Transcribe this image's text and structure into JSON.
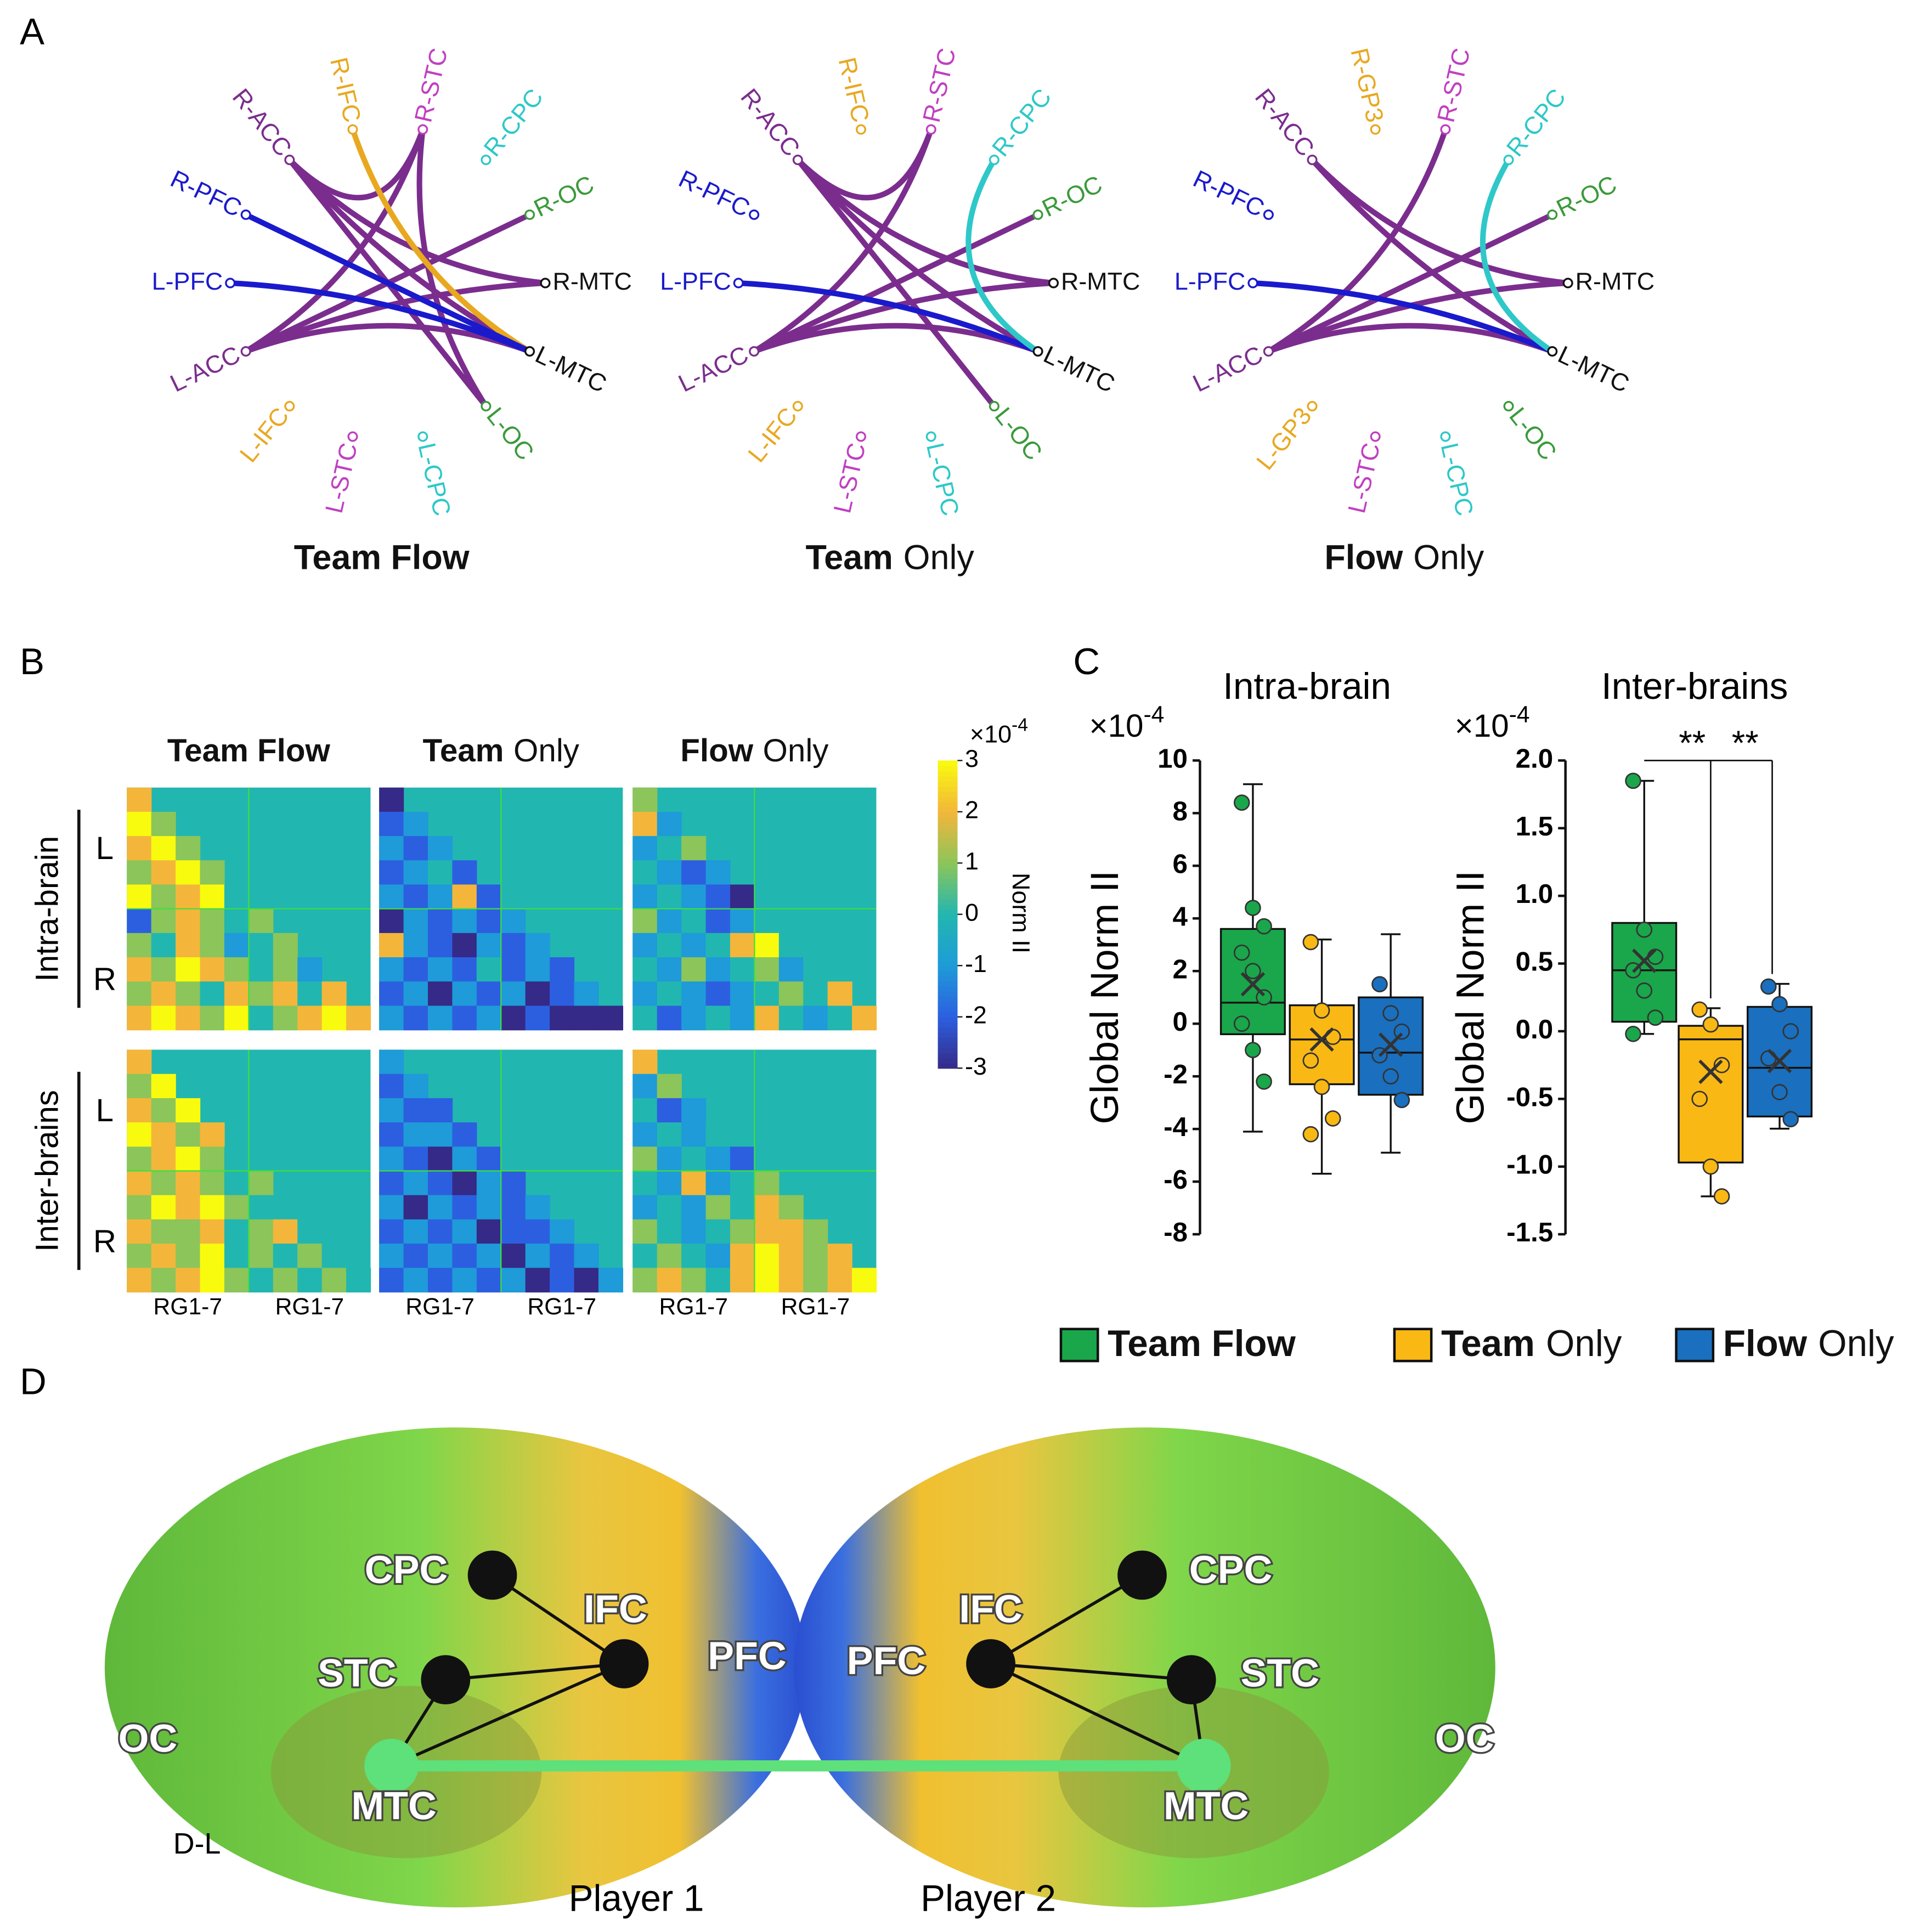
{
  "panel_labels": [
    "A",
    "B",
    "C",
    "D"
  ],
  "circle_graphs": [
    {
      "title": {
        "parts": [
          {
            "text": "Team Flow",
            "bold": true
          }
        ]
      },
      "nodes": [
        {
          "label": "R-MTC",
          "color": "#111111"
        },
        {
          "label": "L-MTC",
          "color": "#111111"
        },
        {
          "label": "L-OC",
          "color": "#3a9a3a"
        },
        {
          "label": "L-CPC",
          "color": "#2ec8c8"
        },
        {
          "label": "L-STC",
          "color": "#c040c0"
        },
        {
          "label": "L-IFC",
          "color": "#e8a820"
        },
        {
          "label": "L-ACC",
          "color": "#7b2d8e"
        },
        {
          "label": "L-PFC",
          "color": "#1a1acc"
        },
        {
          "label": "R-PFC",
          "color": "#1a1acc"
        },
        {
          "label": "R-ACC",
          "color": "#7b2d8e"
        },
        {
          "label": "R-IFC",
          "color": "#e8a820"
        },
        {
          "label": "R-STC",
          "color": "#c040c0"
        },
        {
          "label": "R-CPC",
          "color": "#2ec8c8"
        },
        {
          "label": "R-OC",
          "color": "#3a9a3a"
        }
      ],
      "edges": [
        {
          "from": "R-ACC",
          "to": "R-MTC",
          "color": "#7b2d8e"
        },
        {
          "from": "R-ACC",
          "to": "L-MTC",
          "color": "#7b2d8e"
        },
        {
          "from": "R-ACC",
          "to": "R-STC",
          "color": "#7b2d8e"
        },
        {
          "from": "R-STC",
          "to": "L-ACC",
          "color": "#7b2d8e"
        },
        {
          "from": "R-STC",
          "to": "L-OC",
          "color": "#7b2d8e"
        },
        {
          "from": "L-ACC",
          "to": "R-OC",
          "color": "#7b2d8e"
        },
        {
          "from": "L-ACC",
          "to": "R-MTC",
          "color": "#7b2d8e"
        },
        {
          "from": "L-ACC",
          "to": "L-MTC",
          "color": "#7b2d8e"
        },
        {
          "from": "R-ACC",
          "to": "L-OC",
          "color": "#7b2d8e"
        },
        {
          "from": "R-IFC",
          "to": "L-MTC",
          "color": "#e8a820"
        },
        {
          "from": "R-PFC",
          "to": "L-MTC",
          "color": "#1a1acc"
        },
        {
          "from": "L-PFC",
          "to": "L-MTC",
          "color": "#1a1acc"
        }
      ]
    },
    {
      "title": {
        "parts": [
          {
            "text": "Team",
            "bold": true
          },
          {
            "text": "Only",
            "bold": false
          }
        ]
      },
      "nodes": [
        {
          "label": "R-MTC",
          "color": "#111111"
        },
        {
          "label": "L-MTC",
          "color": "#111111"
        },
        {
          "label": "L-OC",
          "color": "#3a9a3a"
        },
        {
          "label": "L-CPC",
          "color": "#2ec8c8"
        },
        {
          "label": "L-STC",
          "color": "#c040c0"
        },
        {
          "label": "L-IFC",
          "color": "#e8a820"
        },
        {
          "label": "L-ACC",
          "color": "#7b2d8e"
        },
        {
          "label": "L-PFC",
          "color": "#1a1acc"
        },
        {
          "label": "R-PFC",
          "color": "#1a1acc"
        },
        {
          "label": "R-ACC",
          "color": "#7b2d8e"
        },
        {
          "label": "R-IFC",
          "color": "#e8a820"
        },
        {
          "label": "R-STC",
          "color": "#c040c0"
        },
        {
          "label": "R-CPC",
          "color": "#2ec8c8"
        },
        {
          "label": "R-OC",
          "color": "#3a9a3a"
        }
      ],
      "edges": [
        {
          "from": "R-ACC",
          "to": "R-STC",
          "color": "#7b2d8e"
        },
        {
          "from": "R-ACC",
          "to": "R-MTC",
          "color": "#7b2d8e"
        },
        {
          "from": "R-ACC",
          "to": "L-MTC",
          "color": "#7b2d8e"
        },
        {
          "from": "R-ACC",
          "to": "L-OC",
          "color": "#7b2d8e"
        },
        {
          "from": "L-ACC",
          "to": "R-OC",
          "color": "#7b2d8e"
        },
        {
          "from": "L-ACC",
          "to": "R-MTC",
          "color": "#7b2d8e"
        },
        {
          "from": "L-ACC",
          "to": "R-STC",
          "color": "#7b2d8e"
        },
        {
          "from": "L-ACC",
          "to": "L-MTC",
          "color": "#7b2d8e"
        },
        {
          "from": "L-PFC",
          "to": "L-MTC",
          "color": "#1a1acc"
        },
        {
          "from": "R-CPC",
          "to": "L-MTC",
          "color": "#2ec8c8"
        }
      ]
    },
    {
      "title": {
        "parts": [
          {
            "text": "Flow",
            "bold": true
          },
          {
            "text": "Only",
            "bold": false
          }
        ]
      },
      "nodes": [
        {
          "label": "R-MTC",
          "color": "#111111"
        },
        {
          "label": "L-MTC",
          "color": "#111111"
        },
        {
          "label": "L-OC",
          "color": "#3a9a3a"
        },
        {
          "label": "L-CPC",
          "color": "#2ec8c8"
        },
        {
          "label": "L-STC",
          "color": "#c040c0"
        },
        {
          "label": "L-GP3",
          "color": "#e8a820"
        },
        {
          "label": "L-ACC",
          "color": "#7b2d8e"
        },
        {
          "label": "L-PFC",
          "color": "#1a1acc"
        },
        {
          "label": "R-PFC",
          "color": "#1a1acc"
        },
        {
          "label": "R-ACC",
          "color": "#7b2d8e"
        },
        {
          "label": "R-GP3",
          "color": "#e8a820"
        },
        {
          "label": "R-STC",
          "color": "#c040c0"
        },
        {
          "label": "R-CPC",
          "color": "#2ec8c8"
        },
        {
          "label": "R-OC",
          "color": "#3a9a3a"
        }
      ],
      "edges": [
        {
          "from": "R-ACC",
          "to": "R-MTC",
          "color": "#7b2d8e"
        },
        {
          "from": "R-ACC",
          "to": "L-MTC",
          "color": "#7b2d8e"
        },
        {
          "from": "R-STC",
          "to": "L-ACC",
          "color": "#7b2d8e"
        },
        {
          "from": "L-ACC",
          "to": "R-OC",
          "color": "#7b2d8e"
        },
        {
          "from": "L-ACC",
          "to": "R-MTC",
          "color": "#7b2d8e"
        },
        {
          "from": "L-ACC",
          "to": "L-MTC",
          "color": "#7b2d8e"
        },
        {
          "from": "L-PFC",
          "to": "L-MTC",
          "color": "#1a1acc"
        },
        {
          "from": "R-CPC",
          "to": "L-MTC",
          "color": "#2ec8c8"
        }
      ]
    }
  ],
  "heatmaps": {
    "titles": [
      {
        "parts": [
          {
            "text": "Team Flow",
            "bold": true
          }
        ]
      },
      {
        "parts": [
          {
            "text": "Team",
            "bold": true
          },
          {
            "text": "Only",
            "bold": false
          }
        ]
      },
      {
        "parts": [
          {
            "text": "Flow",
            "bold": true
          },
          {
            "text": "Only",
            "bold": false
          }
        ]
      }
    ],
    "row_labels": [
      "Intra-brain",
      "Inter-brains"
    ],
    "side_labels": [
      "L",
      "R"
    ],
    "x_labels": [
      "RG1-7",
      "RG1-7"
    ],
    "colormap": [
      "#352a87",
      "#2c5fe0",
      "#1e9bd8",
      "#22b6b0",
      "#8cc55a",
      "#f3b63a",
      "#f9fb0e"
    ],
    "colorbar": {
      "exponent_base": "×10",
      "exponent": "-4",
      "label": "Norm II",
      "lim": [
        -3,
        3
      ],
      "ticks": [
        3,
        2,
        1,
        0,
        -1,
        -2,
        -3
      ]
    },
    "matrices": [
      [
        [
          [
            2
          ],
          [
            3,
            1
          ],
          [
            2,
            3,
            1
          ],
          [
            1,
            2,
            3,
            1
          ],
          [
            3,
            1,
            2,
            3,
            0
          ],
          [
            -2,
            1,
            2,
            1,
            0,
            1
          ],
          [
            1,
            0,
            2,
            1,
            -1,
            0,
            1
          ],
          [
            2,
            1,
            3,
            2,
            1,
            0,
            1,
            -1
          ],
          [
            1,
            2,
            1,
            0,
            2,
            1,
            2,
            0,
            2
          ],
          [
            2,
            3,
            2,
            1,
            3,
            0,
            1,
            2,
            3,
            2
          ]
        ],
        [
          [
            -3
          ],
          [
            -2,
            -1
          ],
          [
            -1,
            -2,
            -1
          ],
          [
            -2,
            -1,
            0,
            -2
          ],
          [
            -1,
            -2,
            -1,
            2,
            -2
          ],
          [
            -3,
            -1,
            -2,
            -1,
            -2,
            -1
          ],
          [
            2,
            -1,
            -2,
            -3,
            -1,
            -2,
            -1
          ],
          [
            -1,
            -2,
            -1,
            -2,
            0,
            -2,
            -1,
            -2
          ],
          [
            -2,
            -1,
            -3,
            -1,
            -2,
            -1,
            -3,
            -2,
            -1
          ],
          [
            -1,
            -2,
            -1,
            -2,
            -1,
            -3,
            -2,
            -3,
            -3,
            -3
          ]
        ],
        [
          [
            1
          ],
          [
            2,
            -1
          ],
          [
            -1,
            0,
            1
          ],
          [
            0,
            -1,
            -2,
            -1
          ],
          [
            -1,
            0,
            -1,
            -2,
            -3
          ],
          [
            1,
            -1,
            0,
            -2,
            -1,
            0
          ],
          [
            -1,
            0,
            -1,
            0,
            2,
            3,
            0
          ],
          [
            0,
            -1,
            1,
            -1,
            0,
            1,
            -1,
            0
          ],
          [
            -1,
            0,
            -1,
            -2,
            -1,
            0,
            1,
            0,
            2
          ],
          [
            0,
            -2,
            -1,
            0,
            -1,
            2,
            0,
            -1,
            0,
            2
          ]
        ]
      ],
      [
        [
          [
            2
          ],
          [
            1,
            3
          ],
          [
            2,
            1,
            3
          ],
          [
            3,
            2,
            1,
            2
          ],
          [
            1,
            2,
            3,
            1,
            0
          ],
          [
            2,
            1,
            2,
            1,
            0,
            1
          ],
          [
            1,
            3,
            2,
            3,
            1,
            0,
            0
          ],
          [
            2,
            1,
            1,
            2,
            0,
            1,
            2,
            0
          ],
          [
            1,
            2,
            1,
            3,
            0,
            1,
            0,
            1,
            0
          ],
          [
            2,
            1,
            2,
            3,
            1,
            0,
            1,
            0,
            1,
            0
          ]
        ],
        [
          [
            -1
          ],
          [
            -2,
            -1
          ],
          [
            -1,
            -2,
            -2
          ],
          [
            -2,
            -1,
            -1,
            -2
          ],
          [
            -1,
            -2,
            -3,
            -1,
            -2
          ],
          [
            -2,
            -1,
            -2,
            -3,
            -1,
            -2
          ],
          [
            -1,
            -3,
            -1,
            -2,
            -1,
            -2,
            -1
          ],
          [
            -2,
            -1,
            -2,
            -1,
            -3,
            -2,
            -2,
            -1
          ],
          [
            -1,
            -2,
            -1,
            -2,
            -1,
            -3,
            -1,
            -2,
            -1
          ],
          [
            -2,
            -1,
            -2,
            -1,
            -2,
            -1,
            -3,
            -2,
            -3,
            -1
          ]
        ],
        [
          [
            2
          ],
          [
            -1,
            1
          ],
          [
            0,
            -2,
            -1
          ],
          [
            -1,
            0,
            -1,
            0
          ],
          [
            1,
            -1,
            0,
            -1,
            -2
          ],
          [
            0,
            -1,
            2,
            -1,
            0,
            1
          ],
          [
            -1,
            0,
            -1,
            1,
            0,
            2,
            1
          ],
          [
            1,
            0,
            -1,
            0,
            1,
            2,
            2,
            1
          ],
          [
            0,
            1,
            0,
            -1,
            2,
            3,
            2,
            1,
            2
          ],
          [
            1,
            2,
            1,
            0,
            2,
            3,
            2,
            1,
            2,
            3
          ]
        ]
      ]
    ]
  },
  "chart_data": [
    {
      "type": "box",
      "title": "Intra-brain",
      "y_label": "Global Norm II",
      "exponent_base": "×10",
      "exponent": "-4",
      "ylim": [
        -8,
        10
      ],
      "yticks": [
        10,
        8,
        6,
        4,
        2,
        0,
        -2,
        -4,
        -6,
        -8
      ],
      "series": [
        {
          "color": "#1aa64a",
          "whisker_low": -4.1,
          "q1": -0.4,
          "median": 0.8,
          "q3": 3.6,
          "whisker_high": 9.1,
          "mean": 1.5,
          "points": [
            8.4,
            4.4,
            3.7,
            2.7,
            2,
            1,
            0,
            -1,
            -2.2
          ]
        },
        {
          "color": "#f9b814",
          "whisker_low": -5.7,
          "q1": -2.3,
          "median": -0.6,
          "q3": 0.7,
          "whisker_high": 3.2,
          "mean": -0.6,
          "points": [
            3.1,
            0.5,
            -0.5,
            -1.4,
            -2.4,
            -3.6,
            -4.2
          ]
        },
        {
          "color": "#1a6fbe",
          "whisker_low": -4.9,
          "q1": -2.7,
          "median": -1.1,
          "q3": 1.0,
          "whisker_high": 3.4,
          "mean": -0.8,
          "points": [
            1.5,
            0.4,
            -0.3,
            -1.2,
            -2,
            -2.9
          ]
        }
      ]
    },
    {
      "type": "box",
      "title": "Inter-brains",
      "y_label": "Global Norm II",
      "exponent_base": "×10",
      "exponent": "-4",
      "ylim": [
        -1.5,
        2.0
      ],
      "yticks": [
        {
          "value": 2,
          "label": "2.0"
        },
        1.5,
        {
          "value": 1,
          "label": "1.0"
        },
        0.5,
        {
          "value": 0,
          "label": "0.0"
        },
        -0.5,
        {
          "value": -1,
          "label": "-1.0"
        },
        -1.5
      ],
      "significance": [
        "**",
        "**"
      ],
      "series": [
        {
          "color": "#1aa64a",
          "whisker_low": -0.02,
          "q1": 0.07,
          "median": 0.45,
          "q3": 0.8,
          "whisker_high": 1.85,
          "mean": 0.52,
          "points": [
            1.85,
            0.75,
            0.55,
            0.45,
            0.3,
            0.1,
            -0.02
          ]
        },
        {
          "color": "#f9b814",
          "whisker_low": -1.22,
          "q1": -0.97,
          "median": -0.06,
          "q3": 0.04,
          "whisker_high": 0.17,
          "mean": -0.3,
          "points": [
            0.16,
            0.05,
            -0.25,
            -0.5,
            -1.0,
            -1.22
          ]
        },
        {
          "color": "#1a6fbe",
          "whisker_low": -0.72,
          "q1": -0.63,
          "median": -0.27,
          "q3": 0.18,
          "whisker_high": 0.35,
          "mean": -0.22,
          "points": [
            0.33,
            0.2,
            0,
            -0.2,
            -0.45,
            -0.65
          ]
        }
      ]
    }
  ],
  "legend": [
    {
      "color": "#1aa64a",
      "parts": [
        {
          "text": "Team Flow",
          "bold": true
        }
      ]
    },
    {
      "color": "#f9b814",
      "parts": [
        {
          "text": "Team",
          "bold": true
        },
        {
          "text": "Only",
          "bold": false
        }
      ]
    },
    {
      "color": "#1a6fbe",
      "parts": [
        {
          "text": "Flow",
          "bold": true
        },
        {
          "text": "Only",
          "bold": false
        }
      ]
    }
  ],
  "brain": {
    "regions": [
      "CPC",
      "IFC",
      "STC",
      "PFC",
      "OC",
      "MTC"
    ],
    "view": "D-L",
    "players": [
      "Player 1",
      "Player 2"
    ]
  }
}
